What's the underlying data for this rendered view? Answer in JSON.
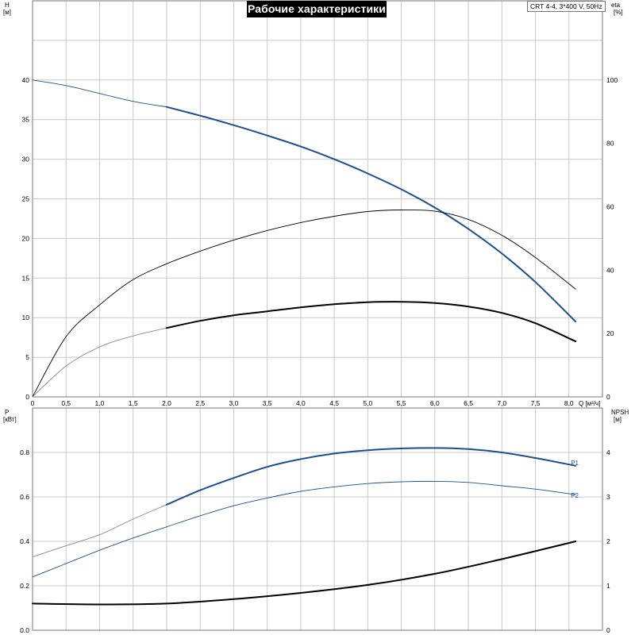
{
  "header": {
    "title": "Рабочие характеристики",
    "model": "CRT 4-4, 3*400 V, 50Hz"
  },
  "colors": {
    "blue": "#1f4f8b",
    "gray": "#888888",
    "black": "#000000",
    "grid": "#c9c9c9"
  },
  "chart_data": [
    {
      "type": "line",
      "panel": "top",
      "x_label": "Q [м³/ч]",
      "x_ticks": [
        "0",
        "0,5",
        "1,0",
        "1,5",
        "2,0",
        "2,5",
        "3,0",
        "3,5",
        "4,0",
        "4,5",
        "5,0",
        "5,5",
        "6,0",
        "6,5",
        "7,0",
        "7,5",
        "8,0"
      ],
      "xlim": [
        0,
        8.5
      ],
      "y_left": {
        "label_line1": "H",
        "label_line2": "[м]",
        "lim": [
          0,
          50
        ],
        "ticks": [
          "0",
          "5",
          "10",
          "15",
          "20",
          "25",
          "30",
          "35",
          "40"
        ]
      },
      "y_right": {
        "label_line1": "eta",
        "label_line2": "[%]",
        "lim": [
          0,
          125
        ],
        "ticks": [
          "0",
          "20",
          "40",
          "60",
          "80",
          "100"
        ]
      },
      "grid": true,
      "series": [
        {
          "name": "",
          "axis": "left",
          "style": "thin-blue",
          "x": [
            0,
            0.5,
            1.0,
            1.5,
            2.0
          ],
          "y": [
            40.0,
            39.3,
            38.3,
            37.3,
            36.6
          ]
        },
        {
          "name": "",
          "axis": "left",
          "style": "bold-blue",
          "x": [
            2.0,
            2.5,
            3.0,
            3.5,
            4.0,
            4.5,
            5.0,
            5.5,
            6.0,
            6.5,
            7.0,
            7.5,
            8.1
          ],
          "y": [
            36.6,
            35.5,
            34.3,
            33.0,
            31.6,
            30.0,
            28.2,
            26.2,
            23.9,
            21.2,
            18.1,
            14.5,
            9.5
          ]
        },
        {
          "name": "",
          "axis": "right",
          "style": "thin-black",
          "x": [
            0,
            0.5,
            1.0,
            1.5,
            2.0,
            2.5,
            3.0,
            3.5,
            4.0,
            4.5,
            5.0,
            5.5,
            6.0,
            6.5,
            7.0,
            7.5,
            8.1
          ],
          "y": [
            0,
            19,
            29,
            37,
            42,
            46,
            49.5,
            52.5,
            55,
            57,
            58.5,
            59,
            58.6,
            56,
            51,
            44,
            34
          ]
        },
        {
          "name": "",
          "axis": "left",
          "style": "thin-gray",
          "x": [
            0,
            0.5,
            1.0,
            1.5,
            2.0
          ],
          "y": [
            0,
            3.9,
            6.3,
            7.7,
            8.7
          ]
        },
        {
          "name": "",
          "axis": "left",
          "style": "bold-black",
          "x": [
            2.0,
            2.5,
            3.0,
            3.5,
            4.0,
            4.5,
            5.0,
            5.5,
            6.0,
            6.5,
            7.0,
            7.5,
            8.1
          ],
          "y": [
            8.7,
            9.6,
            10.3,
            10.8,
            11.3,
            11.7,
            11.95,
            12.0,
            11.85,
            11.4,
            10.6,
            9.3,
            7.0
          ]
        }
      ]
    },
    {
      "type": "line",
      "panel": "bottom",
      "xlim": [
        0,
        8.5
      ],
      "y_left": {
        "label_line1": "P",
        "label_line2": "[кВт]",
        "lim": [
          0,
          1.0
        ],
        "ticks": [
          "0.0",
          "0.2",
          "0.4",
          "0.6",
          "0.8"
        ]
      },
      "y_right": {
        "label_line1": "NPSH",
        "label_line2": "[м]",
        "lim": [
          0,
          5
        ],
        "ticks": [
          "0",
          "1",
          "2",
          "3",
          "4"
        ]
      },
      "grid": true,
      "series": [
        {
          "name": "",
          "axis": "left",
          "style": "thin-gray",
          "x": [
            0,
            0.5,
            1.0,
            1.5,
            2.0
          ],
          "y": [
            0.33,
            0.38,
            0.43,
            0.5,
            0.565
          ]
        },
        {
          "name": "P1",
          "axis": "left",
          "style": "bold-blue",
          "x": [
            2.0,
            2.5,
            3.0,
            3.5,
            4.0,
            4.5,
            5.0,
            5.5,
            6.0,
            6.5,
            7.0,
            7.5,
            8.1
          ],
          "y": [
            0.565,
            0.63,
            0.685,
            0.735,
            0.77,
            0.795,
            0.81,
            0.818,
            0.82,
            0.815,
            0.8,
            0.775,
            0.74
          ]
        },
        {
          "name": "P2",
          "axis": "left",
          "style": "thin-blue",
          "x": [
            0,
            0.5,
            1.0,
            1.5,
            2.0,
            2.5,
            3.0,
            3.5,
            4.0,
            4.5,
            5.0,
            5.5,
            6.0,
            6.5,
            7.0,
            7.5,
            8.1
          ],
          "y": [
            0.24,
            0.3,
            0.36,
            0.415,
            0.465,
            0.515,
            0.56,
            0.595,
            0.625,
            0.645,
            0.66,
            0.668,
            0.67,
            0.665,
            0.65,
            0.635,
            0.61
          ]
        },
        {
          "name": "",
          "axis": "right",
          "style": "bold-black",
          "x": [
            0,
            1.0,
            2.0,
            3.0,
            4.0,
            5.0,
            6.0,
            7.0,
            8.1
          ],
          "y": [
            0.6,
            0.58,
            0.6,
            0.7,
            0.84,
            1.02,
            1.27,
            1.6,
            2.0
          ]
        }
      ]
    }
  ]
}
